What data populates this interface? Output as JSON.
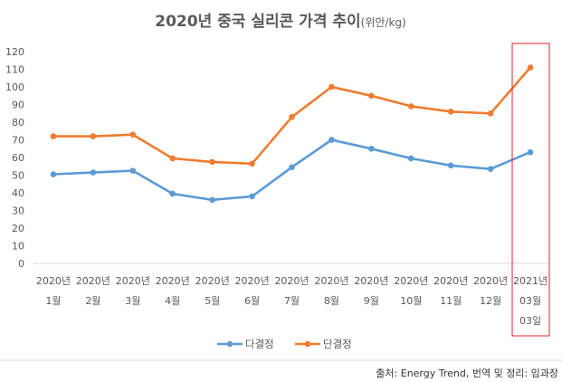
{
  "chart_data": {
    "type": "line",
    "title": "2020년 중국 실리콘 가격 추이",
    "title_unit": "(위안/kg)",
    "categories": [
      [
        "2020년",
        "1월"
      ],
      [
        "2020년",
        "2월"
      ],
      [
        "2020년",
        "3월"
      ],
      [
        "2020년",
        "4월"
      ],
      [
        "2020년",
        "5월"
      ],
      [
        "2020년",
        "6월"
      ],
      [
        "2020년",
        "7월"
      ],
      [
        "2020년",
        "8월"
      ],
      [
        "2020년",
        "9월"
      ],
      [
        "2020년",
        "10월"
      ],
      [
        "2020년",
        "11월"
      ],
      [
        "2020년",
        "12월"
      ],
      [
        "2021년",
        "03월",
        "03일"
      ]
    ],
    "ylim": [
      0,
      120
    ],
    "yticks": [
      0,
      10,
      20,
      30,
      40,
      50,
      60,
      70,
      80,
      90,
      100,
      110,
      120
    ],
    "grid": false,
    "legend_position": "bottom",
    "highlight_category_index": 12,
    "series": [
      {
        "name": "다결정",
        "color": "#5b9bd5",
        "values": [
          50.5,
          51.5,
          52.5,
          39.5,
          36,
          38,
          54.5,
          70,
          65,
          59.5,
          55.5,
          53.5,
          63
        ]
      },
      {
        "name": "단결정",
        "color": "#ed7d31",
        "values": [
          72,
          72,
          73,
          59.5,
          57.5,
          56.5,
          83,
          100,
          95,
          89,
          86,
          85,
          111
        ]
      }
    ],
    "highlight_color": "#e0202a"
  },
  "source_note": "출처: Energy Trend, 번역 및 정리: 임과장"
}
